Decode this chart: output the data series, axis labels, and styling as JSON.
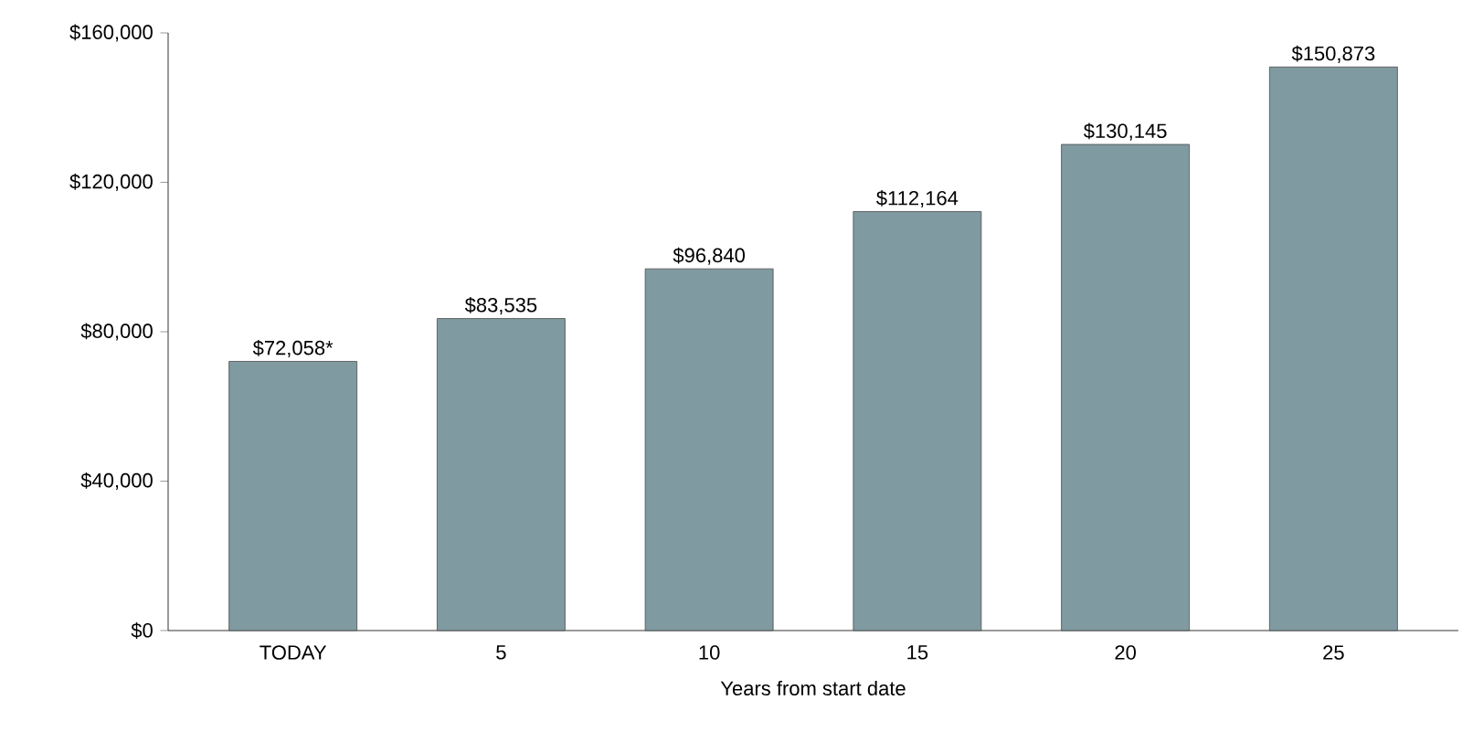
{
  "chart_data": {
    "type": "bar",
    "categories": [
      "TODAY",
      "5",
      "10",
      "15",
      "20",
      "25"
    ],
    "values": [
      72058,
      83535,
      96840,
      112164,
      130145,
      150873
    ],
    "value_labels": [
      "$72,058*",
      "$83,535",
      "$96,840",
      "$112,164",
      "$130,145",
      "$150,873"
    ],
    "color": "#7f9aa0",
    "xlabel": "Years from start date",
    "ylim": [
      0,
      160000
    ],
    "yticks": [
      {
        "value": 0,
        "label": "$0"
      },
      {
        "value": 40000,
        "label": "$40,000"
      },
      {
        "value": 80000,
        "label": "$80,000"
      },
      {
        "value": 120000,
        "label": "$120,000"
      },
      {
        "value": 160000,
        "label": "$160,000"
      }
    ]
  }
}
